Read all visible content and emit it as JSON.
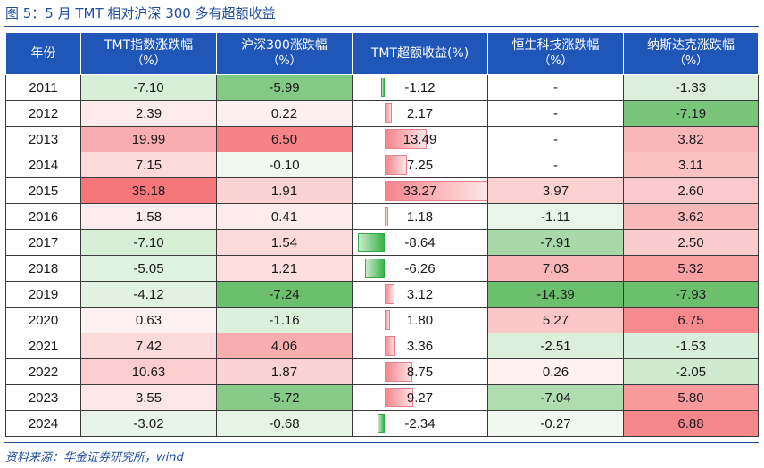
{
  "figure": {
    "title": "图 5：5 月 TMT 相对沪深 300 多有超额收益",
    "source": "资料来源：华金证券研究所，wind"
  },
  "table": {
    "headers": [
      {
        "label": "年份",
        "unit": ""
      },
      {
        "label": "TMT指数涨跌幅",
        "unit": "（%）"
      },
      {
        "label": "沪深300涨跌幅",
        "unit": "（%）"
      },
      {
        "label": "TMT超额收益(%)",
        "unit": ""
      },
      {
        "label": "恒生科技涨跌幅",
        "unit": "（%）"
      },
      {
        "label": "纳斯达克涨跌幅",
        "unit": "（%）"
      }
    ],
    "rows": [
      {
        "year": "2011",
        "tmt": "-7.10",
        "hs300": "-5.99",
        "excess": "-1.12",
        "hstech": "-",
        "nasdaq": "-1.33"
      },
      {
        "year": "2012",
        "tmt": "2.39",
        "hs300": "0.22",
        "excess": "2.17",
        "hstech": "-",
        "nasdaq": "-7.19"
      },
      {
        "year": "2013",
        "tmt": "19.99",
        "hs300": "6.50",
        "excess": "13.49",
        "hstech": "-",
        "nasdaq": "3.82"
      },
      {
        "year": "2014",
        "tmt": "7.15",
        "hs300": "-0.10",
        "excess": "7.25",
        "hstech": "-",
        "nasdaq": "3.11"
      },
      {
        "year": "2015",
        "tmt": "35.18",
        "hs300": "1.91",
        "excess": "33.27",
        "hstech": "3.97",
        "nasdaq": "2.60"
      },
      {
        "year": "2016",
        "tmt": "1.58",
        "hs300": "0.41",
        "excess": "1.18",
        "hstech": "-1.11",
        "nasdaq": "3.62"
      },
      {
        "year": "2017",
        "tmt": "-7.10",
        "hs300": "1.54",
        "excess": "-8.64",
        "hstech": "-7.91",
        "nasdaq": "2.50"
      },
      {
        "year": "2018",
        "tmt": "-5.05",
        "hs300": "1.21",
        "excess": "-6.26",
        "hstech": "7.03",
        "nasdaq": "5.32"
      },
      {
        "year": "2019",
        "tmt": "-4.12",
        "hs300": "-7.24",
        "excess": "3.12",
        "hstech": "-14.39",
        "nasdaq": "-7.93"
      },
      {
        "year": "2020",
        "tmt": "0.63",
        "hs300": "-1.16",
        "excess": "1.80",
        "hstech": "5.27",
        "nasdaq": "6.75"
      },
      {
        "year": "2021",
        "tmt": "7.42",
        "hs300": "4.06",
        "excess": "3.36",
        "hstech": "-2.51",
        "nasdaq": "-1.53"
      },
      {
        "year": "2022",
        "tmt": "10.63",
        "hs300": "1.87",
        "excess": "8.75",
        "hstech": "0.26",
        "nasdaq": "-2.05"
      },
      {
        "year": "2023",
        "tmt": "3.55",
        "hs300": "-5.72",
        "excess": "9.27",
        "hstech": "-7.04",
        "nasdaq": "5.80"
      },
      {
        "year": "2024",
        "tmt": "-3.02",
        "hs300": "-0.68",
        "excess": "-2.34",
        "hstech": "-0.27",
        "nasdaq": "6.88"
      }
    ]
  },
  "colors": {
    "header_bg": "#1f56b8",
    "positive": "#f4686c",
    "negative": "#5cb85c",
    "title": "#1f4e9c"
  }
}
